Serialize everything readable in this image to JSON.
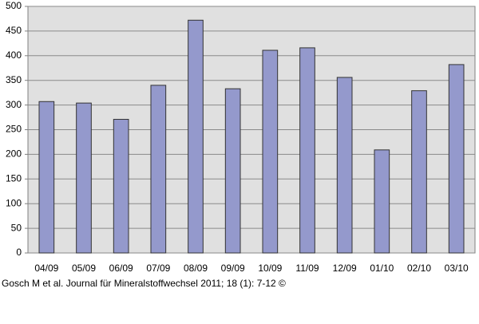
{
  "chart_data": {
    "type": "bar",
    "categories": [
      "04/09",
      "05/09",
      "06/09",
      "07/09",
      "08/09",
      "09/09",
      "10/09",
      "11/09",
      "12/09",
      "01/10",
      "02/10",
      "03/10"
    ],
    "values": [
      307,
      304,
      271,
      340,
      472,
      333,
      411,
      416,
      356,
      209,
      329,
      382
    ],
    "color": "#9499cc",
    "ylim": [
      0,
      500
    ],
    "yticks": [
      0,
      50,
      100,
      150,
      200,
      250,
      300,
      350,
      400,
      450,
      500
    ],
    "grid": true,
    "source": "Gosch M et al. Journal für Mineralstoffwechsel 2011; 18 (1): 7-12 ©"
  }
}
